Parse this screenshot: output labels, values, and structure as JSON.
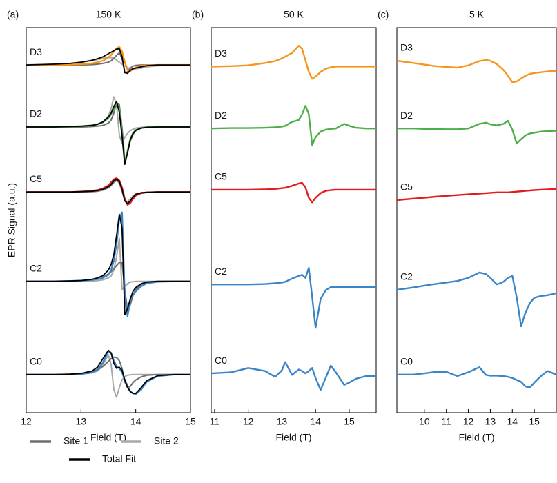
{
  "chart_data": [
    {
      "type": "line",
      "panel": "(a)",
      "title": "150 K",
      "xlabel": "Field (T)",
      "ylabel": "EPR Signal (a.u.)",
      "xlim": [
        12,
        15
      ],
      "xticks": [
        12,
        13,
        14,
        15
      ],
      "ylim": [
        0,
        100
      ],
      "legend": [
        {
          "name": "Site 1",
          "color": "#6e6e6e"
        },
        {
          "name": "Site 2",
          "color": "#a8a8a8"
        },
        {
          "name": "Total Fit",
          "color": "#000000"
        }
      ],
      "x": [
        12,
        12.5,
        12.8,
        13,
        13.2,
        13.3,
        13.4,
        13.5,
        13.55,
        13.6,
        13.65,
        13.7,
        13.75,
        13.8,
        13.85,
        13.9,
        13.95,
        14,
        14.1,
        14.2,
        14.4,
        14.7,
        15
      ],
      "series": [
        {
          "name": "D3",
          "color": "#f7941d",
          "values": [
            90.3,
            90.3,
            90.4,
            90.5,
            90.7,
            91.0,
            91.4,
            92.2,
            92.9,
            93.8,
            94.6,
            95.0,
            93.8,
            91.0,
            89.0,
            88.7,
            89.2,
            89.7,
            90.1,
            90.2,
            90.3,
            90.3,
            90.3
          ],
          "fit_components": [
            [
              90.3,
              90.3,
              90.3,
              90.3,
              90.4,
              90.5,
              90.7,
              91.0,
              91.4,
              92.0,
              92.8,
              93.5,
              92.0,
              88.3,
              88.5,
              89.5,
              90.0,
              90.2,
              90.3,
              90.3,
              90.3,
              90.3,
              90.3
            ],
            [
              90.3,
              90.5,
              90.7,
              91.0,
              91.4,
              91.7,
              92.0,
              92.2,
              92.2,
              92.0,
              91.6,
              91.0,
              90.5,
              90.0,
              89.6,
              89.4,
              89.3,
              89.3,
              89.5,
              89.8,
              90.1,
              90.3,
              90.3
            ],
            [
              90.3,
              90.5,
              90.7,
              91.0,
              91.5,
              91.9,
              92.4,
              93.2,
              93.6,
              94.0,
              94.4,
              94.5,
              92.5,
              88.3,
              88.1,
              88.9,
              89.3,
              89.5,
              89.8,
              90.1,
              90.3,
              90.3,
              90.3
            ]
          ]
        },
        {
          "name": "D2",
          "color": "#4daf4a",
          "values": [
            74.2,
            74.2,
            74.3,
            74.4,
            74.6,
            74.9,
            75.4,
            76.5,
            77.5,
            79.0,
            80.6,
            79.0,
            72.0,
            64.6,
            68.0,
            71.0,
            72.6,
            73.4,
            73.9,
            74.1,
            74.2,
            74.2,
            74.2
          ],
          "fit_components": [
            [
              74.2,
              74.2,
              74.2,
              74.2,
              74.3,
              74.4,
              74.6,
              75.2,
              76.0,
              77.8,
              80.5,
              80.0,
              74.0,
              65.5,
              67.5,
              70.5,
              72.2,
              73.2,
              73.9,
              74.1,
              74.2,
              74.2,
              74.2
            ],
            [
              74.2,
              74.2,
              74.3,
              74.4,
              74.6,
              74.9,
              75.5,
              77.0,
              79.0,
              82.0,
              80.0,
              72.0,
              70.0,
              71.5,
              72.5,
              73.2,
              73.6,
              73.9,
              74.1,
              74.2,
              74.2,
              74.2,
              74.2
            ],
            [
              74.2,
              74.2,
              74.3,
              74.4,
              74.6,
              74.9,
              75.5,
              76.8,
              77.8,
              79.5,
              80.8,
              78.0,
              72.0,
              64.5,
              67.5,
              70.8,
              72.5,
              73.3,
              73.9,
              74.1,
              74.2,
              74.2,
              74.2
            ]
          ]
        },
        {
          "name": "C5",
          "color": "#e41a1c",
          "values": [
            57.3,
            57.3,
            57.3,
            57.4,
            57.6,
            57.8,
            58.2,
            59.0,
            59.8,
            60.6,
            60.9,
            60.3,
            58.5,
            55.5,
            54.0,
            54.4,
            55.5,
            56.4,
            57.0,
            57.2,
            57.3,
            57.3,
            57.3
          ],
          "fit_components": [
            [
              57.3,
              57.3,
              57.3,
              57.3,
              57.4,
              57.5,
              57.8,
              58.4,
              59.0,
              59.8,
              60.3,
              59.8,
              58.0,
              55.0,
              54.2,
              55.0,
              56.0,
              56.6,
              57.1,
              57.2,
              57.3,
              57.3,
              57.3
            ],
            [
              57.3,
              57.3,
              57.3,
              57.4,
              57.5,
              57.7,
              58.0,
              58.7,
              59.3,
              60.0,
              60.5,
              59.5,
              57.5,
              55.0,
              54.8,
              55.5,
              56.3,
              56.8,
              57.1,
              57.2,
              57.3,
              57.3,
              57.3
            ],
            [
              57.3,
              57.3,
              57.3,
              57.4,
              57.5,
              57.7,
              58.0,
              58.7,
              59.3,
              60.2,
              60.6,
              60.0,
              58.0,
              55.0,
              54.3,
              55.0,
              56.0,
              56.7,
              57.1,
              57.2,
              57.3,
              57.3,
              57.3
            ]
          ]
        },
        {
          "name": "C2",
          "color": "#3b85c6",
          "values": [
            34.1,
            34.1,
            34.2,
            34.3,
            34.5,
            34.7,
            35.0,
            35.8,
            37.0,
            39.5,
            44.0,
            50.5,
            52.0,
            30.0,
            25.1,
            29.0,
            30.5,
            31.5,
            32.8,
            33.6,
            34.0,
            34.1,
            34.1
          ],
          "fit_components": [
            [
              34.1,
              34.1,
              34.2,
              34.3,
              34.5,
              34.8,
              35.2,
              36.0,
              36.6,
              37.3,
              38.2,
              39.0,
              39.0,
              32.0,
              26.5,
              28.0,
              30.5,
              32.0,
              33.3,
              33.8,
              34.1,
              34.1,
              34.1
            ],
            [
              34.1,
              34.1,
              34.1,
              34.1,
              34.2,
              34.3,
              34.5,
              35.0,
              35.5,
              37.0,
              40.5,
              45.3,
              32.0,
              32.8,
              33.5,
              33.9,
              34.0,
              34.1,
              34.1,
              34.1,
              34.1,
              34.1,
              34.1
            ],
            [
              34.1,
              34.1,
              34.2,
              34.3,
              34.6,
              35.0,
              35.6,
              37.0,
              38.5,
              41.0,
              46.0,
              51.5,
              48.0,
              25.5,
              27.0,
              29.5,
              31.5,
              32.5,
              33.5,
              33.9,
              34.1,
              34.1,
              34.1
            ]
          ]
        },
        {
          "name": "C0",
          "color": "#3b85c6",
          "values": [
            9.9,
            9.9,
            9.9,
            10.0,
            10.5,
            11.2,
            13.0,
            16.0,
            15.5,
            13.5,
            12.0,
            11.5,
            10.5,
            8.5,
            7.0,
            5.5,
            5.0,
            4.8,
            6.0,
            8.0,
            9.5,
            9.9,
            9.9
          ],
          "fit_components": [
            [
              9.9,
              9.9,
              10.0,
              10.1,
              10.5,
              11.0,
              12.0,
              13.3,
              14.0,
              14.4,
              14.3,
              13.5,
              11.5,
              8.0,
              6.5,
              6.8,
              7.8,
              8.5,
              9.3,
              9.7,
              9.9,
              9.9,
              9.9
            ],
            [
              9.9,
              9.9,
              9.9,
              10.0,
              10.3,
              10.8,
              12.5,
              15.0,
              12.5,
              6.0,
              4.0,
              6.5,
              8.5,
              9.4,
              9.7,
              9.8,
              9.9,
              9.9,
              9.9,
              9.9,
              9.9,
              9.9,
              9.9
            ],
            [
              9.9,
              9.9,
              10.0,
              10.2,
              10.8,
              11.8,
              14.0,
              16.2,
              15.5,
              12.8,
              11.5,
              11.8,
              11.0,
              8.5,
              6.5,
              5.5,
              5.0,
              5.0,
              6.5,
              8.3,
              9.6,
              9.9,
              9.9
            ]
          ]
        }
      ]
    },
    {
      "type": "line",
      "panel": "(b)",
      "title": "50 K",
      "xlabel": "Field (T)",
      "xlim": [
        10.9,
        15.8
      ],
      "xticks": [
        11,
        12,
        13,
        14,
        15
      ],
      "ylim": [
        0,
        100
      ],
      "x": [
        10.9,
        11.5,
        12,
        12.5,
        12.8,
        13,
        13.1,
        13.3,
        13.5,
        13.6,
        13.7,
        13.8,
        13.9,
        14,
        14.15,
        14.3,
        14.45,
        14.6,
        14.85,
        15,
        15.2,
        15.5,
        15.8
      ],
      "series": [
        {
          "name": "D3",
          "color": "#f7941d",
          "values": [
            89.9,
            90.0,
            90.2,
            90.8,
            91.3,
            92.0,
            92.5,
            93.4,
            95.3,
            94.5,
            91.5,
            88.5,
            86.7,
            87.3,
            88.5,
            89.3,
            89.7,
            89.9,
            89.9,
            89.9,
            89.9,
            89.9,
            89.9
          ]
        },
        {
          "name": "D2",
          "color": "#4daf4a",
          "values": [
            73.8,
            73.9,
            73.9,
            74.0,
            74.1,
            74.3,
            74.5,
            75.5,
            76.0,
            77.5,
            79.7,
            77.5,
            69.5,
            71.5,
            73.0,
            73.5,
            73.7,
            73.8,
            75.0,
            74.5,
            74.0,
            73.8,
            73.8
          ]
        },
        {
          "name": "C5",
          "color": "#e41a1c",
          "values": [
            57.9,
            57.9,
            57.9,
            58.0,
            58.1,
            58.3,
            58.4,
            58.9,
            59.5,
            59.7,
            58.5,
            55.8,
            54.6,
            55.8,
            57.0,
            57.6,
            57.8,
            57.9,
            57.9,
            57.9,
            57.9,
            57.9,
            57.9
          ]
        },
        {
          "name": "C2",
          "color": "#3b85c6",
          "values": [
            33.3,
            33.3,
            33.3,
            33.4,
            33.6,
            33.8,
            34.0,
            34.8,
            35.5,
            35.8,
            35.0,
            37.6,
            30.0,
            22.0,
            29.5,
            31.8,
            32.6,
            32.6,
            32.6,
            32.6,
            32.6,
            32.6,
            32.6
          ]
        },
        {
          "name": "C0",
          "color": "#3b85c6",
          "values": [
            10.2,
            10.5,
            11.6,
            10.8,
            9.3,
            11.0,
            13.1,
            9.8,
            11.2,
            10.8,
            10.2,
            10.8,
            11.6,
            9.0,
            5.9,
            9.0,
            12.2,
            10.5,
            7.2,
            7.8,
            8.8,
            9.5,
            9.5
          ]
        }
      ]
    },
    {
      "type": "line",
      "panel": "(c)",
      "title": "5 K",
      "xlabel": "Field (T)",
      "xlim": [
        8.75,
        16
      ],
      "xticks": [
        10,
        11,
        12,
        13,
        14,
        15
      ],
      "ylim": [
        0,
        100
      ],
      "x": [
        8.75,
        9.5,
        10,
        10.5,
        11,
        11.5,
        12,
        12.5,
        12.8,
        13,
        13.3,
        13.6,
        13.8,
        14,
        14.2,
        14.4,
        14.6,
        14.8,
        15,
        15.3,
        15.6,
        16
      ],
      "series": [
        {
          "name": "D3",
          "color": "#f7941d",
          "values": [
            91.4,
            90.8,
            90.4,
            90.0,
            89.8,
            89.6,
            90.2,
            91.3,
            91.6,
            91.4,
            90.5,
            89.0,
            87.5,
            85.8,
            86.0,
            86.8,
            87.5,
            88.0,
            88.2,
            88.4,
            88.6,
            88.8
          ]
        },
        {
          "name": "D2",
          "color": "#4daf4a",
          "values": [
            73.8,
            73.8,
            73.7,
            73.7,
            73.6,
            73.6,
            73.8,
            75.0,
            75.3,
            74.9,
            74.6,
            75.0,
            75.8,
            73.5,
            69.9,
            71.0,
            72.0,
            72.5,
            72.7,
            73.0,
            73.1,
            73.2
          ]
        },
        {
          "name": "C5",
          "color": "#e41a1c",
          "values": [
            55.2,
            55.6,
            55.8,
            56.1,
            56.3,
            56.5,
            56.7,
            56.9,
            57.0,
            57.1,
            57.2,
            57.2,
            57.2,
            57.3,
            57.4,
            57.5,
            57.6,
            57.7,
            57.8,
            57.9,
            58.0,
            58.1
          ]
        },
        {
          "name": "C2",
          "color": "#3b85c6",
          "values": [
            31.9,
            32.5,
            33.0,
            33.4,
            33.8,
            34.2,
            35.0,
            36.4,
            36.0,
            35.0,
            33.3,
            34.0,
            35.0,
            35.5,
            30.0,
            22.4,
            26.0,
            28.5,
            29.8,
            30.3,
            30.5,
            31.0
          ]
        },
        {
          "name": "C0",
          "color": "#3b85c6",
          "values": [
            9.9,
            9.9,
            10.2,
            10.6,
            10.6,
            9.5,
            10.5,
            11.8,
            9.8,
            9.6,
            9.6,
            9.5,
            9.3,
            9.0,
            8.5,
            8.0,
            6.8,
            6.5,
            7.8,
            9.5,
            10.8,
            9.9
          ]
        }
      ]
    }
  ]
}
